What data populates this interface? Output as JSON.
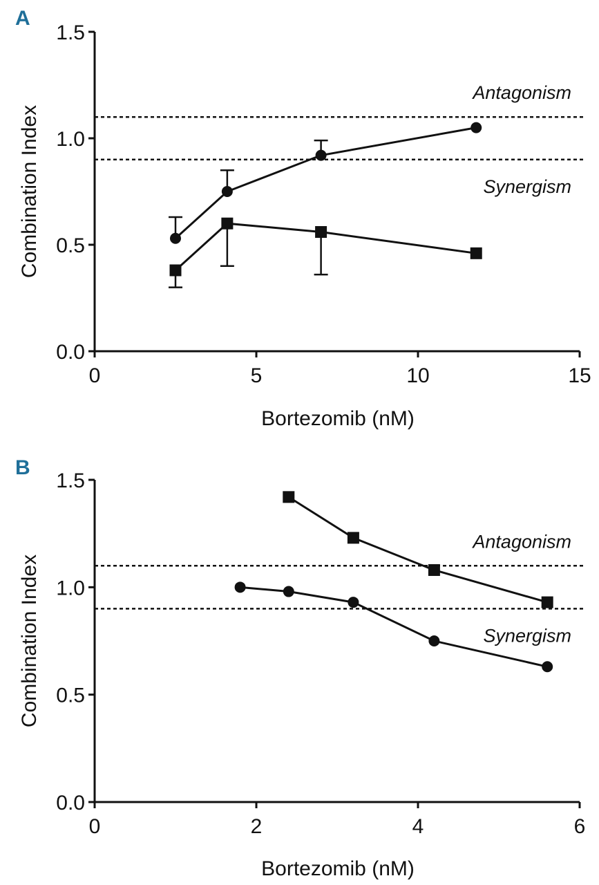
{
  "chart_data": [
    {
      "panel": "A",
      "type": "line",
      "xlabel": "Bortezomib (nM)",
      "ylabel": "Combination Index",
      "xlim": [
        0,
        15
      ],
      "ylim": [
        0,
        1.5
      ],
      "xticks": [
        0,
        5,
        10,
        15
      ],
      "xtick_labels": [
        "0",
        "5",
        "10",
        "15"
      ],
      "yticks": [
        0,
        0.5,
        1.0,
        1.5
      ],
      "ytick_labels": [
        "0.0",
        "0.5",
        "1.0",
        "1.5"
      ],
      "reference_lines": [
        {
          "y": 1.1,
          "label": "Antagonism",
          "label_position": "above"
        },
        {
          "y": 0.9,
          "label": "Synergism",
          "label_position": "below"
        }
      ],
      "series": [
        {
          "name": "circle-series",
          "marker": "circle",
          "x": [
            2.5,
            4.1,
            7.0,
            11.8
          ],
          "y": [
            0.53,
            0.75,
            0.92,
            1.05
          ],
          "err_upper": [
            0.1,
            0.1,
            0.07,
            0
          ],
          "err_lower": [
            0,
            0,
            0,
            0
          ]
        },
        {
          "name": "square-series",
          "marker": "square",
          "x": [
            2.5,
            4.1,
            7.0,
            11.8
          ],
          "y": [
            0.38,
            0.6,
            0.56,
            0.46
          ],
          "err_upper": [
            0,
            0,
            0,
            0
          ],
          "err_lower": [
            0.08,
            0.2,
            0.2,
            0
          ]
        }
      ]
    },
    {
      "panel": "B",
      "type": "line",
      "xlabel": "Bortezomib (nM)",
      "ylabel": "Combination Index",
      "xlim": [
        0,
        6
      ],
      "ylim": [
        0,
        1.5
      ],
      "xticks": [
        0,
        2,
        4,
        6
      ],
      "xtick_labels": [
        "0",
        "2",
        "4",
        "6"
      ],
      "yticks": [
        0,
        0.5,
        1.0,
        1.5
      ],
      "ytick_labels": [
        "0.0",
        "0.5",
        "1.0",
        "1.5"
      ],
      "reference_lines": [
        {
          "y": 1.1,
          "label": "Antagonism",
          "label_position": "above"
        },
        {
          "y": 0.9,
          "label": "Synergism",
          "label_position": "below"
        }
      ],
      "series": [
        {
          "name": "square-series",
          "marker": "square",
          "x": [
            2.4,
            3.2,
            4.2,
            5.6
          ],
          "y": [
            1.42,
            1.23,
            1.08,
            0.93
          ]
        },
        {
          "name": "circle-series",
          "marker": "circle",
          "x": [
            1.8,
            2.4,
            3.2,
            4.2,
            5.6
          ],
          "y": [
            1.0,
            0.98,
            0.93,
            0.75,
            0.63
          ]
        }
      ]
    }
  ]
}
